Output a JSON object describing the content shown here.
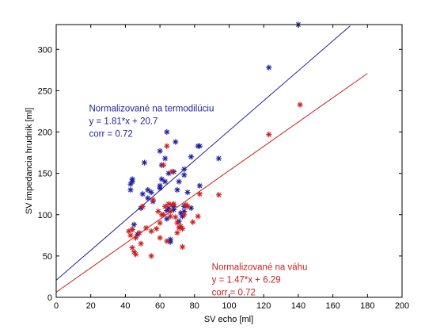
{
  "chart_data": {
    "type": "scatter",
    "xlabel": "SV echo [ml]",
    "ylabel": "SV impedancia hrudník [ml]",
    "xlim": [
      0,
      200
    ],
    "ylim": [
      0,
      330
    ],
    "xticks": [
      0,
      20,
      40,
      60,
      80,
      100,
      120,
      140,
      160,
      180,
      200
    ],
    "yticks": [
      0,
      50,
      100,
      150,
      200,
      250,
      300
    ],
    "grid": false,
    "marker": "asterisk",
    "series": [
      {
        "color": "#1f1f9e",
        "points": [
          [
            43,
            130
          ],
          [
            43,
            137
          ],
          [
            44,
            140
          ],
          [
            44,
            143
          ],
          [
            44,
            82
          ],
          [
            45,
            88
          ],
          [
            47,
            76
          ],
          [
            49,
            108
          ],
          [
            50,
            125
          ],
          [
            51,
            163
          ],
          [
            53,
            130
          ],
          [
            53,
            120
          ],
          [
            55,
            127
          ],
          [
            56,
            116
          ],
          [
            60,
            177
          ],
          [
            60,
            135
          ],
          [
            60,
            132
          ],
          [
            61,
            143
          ],
          [
            61,
            160
          ],
          [
            63,
            168
          ],
          [
            63,
            140
          ],
          [
            64,
            200
          ],
          [
            64,
            105
          ],
          [
            64,
            95
          ],
          [
            65,
            150
          ],
          [
            65,
            108
          ],
          [
            66,
            70
          ],
          [
            66,
            67
          ],
          [
            67,
            152
          ],
          [
            68,
            110
          ],
          [
            68,
            106
          ],
          [
            68,
            152
          ],
          [
            69,
            188
          ],
          [
            70,
            130
          ],
          [
            71,
            140
          ],
          [
            71,
            92
          ],
          [
            72,
            102
          ],
          [
            73,
            98
          ],
          [
            74,
            155
          ],
          [
            74,
            148
          ],
          [
            74,
            110
          ],
          [
            74,
            104
          ],
          [
            76,
            127
          ],
          [
            78,
            170
          ],
          [
            78,
            108
          ],
          [
            82,
            183
          ],
          [
            83,
            183
          ],
          [
            83,
            135
          ],
          [
            94,
            168
          ],
          [
            123,
            278
          ],
          [
            140,
            330
          ]
        ],
        "fit": {
          "slope": 1.81,
          "intercept": 20.7,
          "x_range": [
            0,
            170
          ]
        }
      },
      {
        "color": "#cc1f1f",
        "points": [
          [
            42,
            80
          ],
          [
            43,
            75
          ],
          [
            44,
            82
          ],
          [
            44,
            60
          ],
          [
            45,
            55
          ],
          [
            46,
            72
          ],
          [
            46,
            52
          ],
          [
            48,
            78
          ],
          [
            49,
            65
          ],
          [
            50,
            110
          ],
          [
            52,
            84
          ],
          [
            55,
            50
          ],
          [
            55,
            80
          ],
          [
            56,
            118
          ],
          [
            58,
            83
          ],
          [
            59,
            104
          ],
          [
            60,
            72
          ],
          [
            60,
            90
          ],
          [
            61,
            100
          ],
          [
            62,
            100
          ],
          [
            62,
            160
          ],
          [
            63,
            110
          ],
          [
            64,
            68
          ],
          [
            64,
            183
          ],
          [
            65,
            113
          ],
          [
            66,
            98
          ],
          [
            66,
            104
          ],
          [
            67,
            112
          ],
          [
            67,
            152
          ],
          [
            68,
            113
          ],
          [
            69,
            97
          ],
          [
            70,
            78
          ],
          [
            70,
            90
          ],
          [
            71,
            84
          ],
          [
            72,
            86
          ],
          [
            73,
            83
          ],
          [
            73,
            61
          ],
          [
            74,
            100
          ],
          [
            75,
            112
          ],
          [
            76,
            110
          ],
          [
            79,
            91
          ],
          [
            82,
            98
          ],
          [
            83,
            125
          ],
          [
            94,
            124
          ],
          [
            123,
            197
          ],
          [
            141,
            233
          ]
        ],
        "fit": {
          "slope": 1.47,
          "intercept": 6.29,
          "x_range": [
            0,
            180
          ]
        }
      }
    ],
    "annotations": [
      {
        "color": "#1f1f9e",
        "lines": [
          "Normalizované na termodilúciu",
          "y = 1.81*x + 20.7",
          "corr = 0.72"
        ],
        "anchor": [
          19,
          225
        ]
      },
      {
        "color": "#cc1f1f",
        "lines": [
          "Normalizované na váhu",
          "y = 1.47*x + 6.29",
          "corr = 0.72"
        ],
        "anchor": [
          90,
          33
        ]
      }
    ]
  }
}
